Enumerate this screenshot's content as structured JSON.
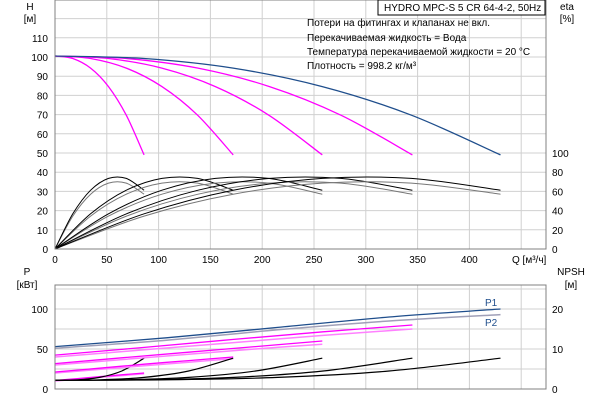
{
  "header": {
    "title": "HYDRO MPC-S 5 CR 64-4-2, 50Hz",
    "notes": [
      "Потери на фитингах и клапанах не вкл.",
      "Перекачиваемая жидкость = Вода",
      "Температура перекачиваемой жидкости = 20 °C",
      "Плотность = 998.2 кг/м³"
    ]
  },
  "colors": {
    "all_pumps": "#1f4e8c",
    "partial": "#ff00ff",
    "efficiency": "#000000",
    "npsh": "#000000",
    "p2": "#a0a0b8",
    "grid": "#d0d0d0"
  },
  "chart_data": [
    {
      "type": "line",
      "title": "",
      "xlabel": "Q [м³/ч]",
      "ylabel": "H\n[м]",
      "ylabel_right": "eta\n[%]",
      "xlim": [
        0,
        474
      ],
      "ylim": [
        0,
        130
      ],
      "ylim_right": [
        0,
        260
      ],
      "x_ticks": [
        "0",
        "50",
        "100",
        "150",
        "200",
        "250",
        "300",
        "350",
        "400"
      ],
      "y_ticks": [
        "0",
        "10",
        "20",
        "30",
        "40",
        "50",
        "60",
        "70",
        "80",
        "90",
        "100",
        "110"
      ],
      "y_ticks_right": [
        "0",
        "20",
        "40",
        "60",
        "80",
        "100"
      ],
      "grid": true,
      "series": [
        {
          "pumps": 1,
          "q": [
            0,
            17.2,
            34.4,
            51.6,
            68.8,
            86
          ],
          "H": [
            100.5,
            99.2,
            94.2,
            84.6,
            69.7,
            49.0
          ],
          "eta": [
            0,
            36.7,
            61.2,
            73.5,
            73.5,
            61.2
          ],
          "eta2": [
            0,
            34.3,
            57.1,
            68.6,
            68.6,
            57.1
          ]
        },
        {
          "pumps": 2,
          "q": [
            0,
            34.4,
            68.8,
            103.2,
            137.6,
            172
          ],
          "H": [
            100.5,
            99.2,
            94.2,
            84.6,
            69.7,
            49.0
          ],
          "eta": [
            0,
            36.7,
            61.2,
            73.5,
            73.5,
            61.2
          ],
          "eta2": [
            0,
            34.3,
            57.1,
            68.6,
            68.6,
            57.1
          ]
        },
        {
          "pumps": 3,
          "q": [
            0,
            51.6,
            103.2,
            154.8,
            206.4,
            258
          ],
          "H": [
            100.5,
            99.2,
            94.2,
            84.6,
            69.7,
            49.0
          ],
          "eta": [
            0,
            36.7,
            61.2,
            73.5,
            73.5,
            61.2
          ],
          "eta2": [
            0,
            34.3,
            57.1,
            68.6,
            68.6,
            57.1
          ]
        },
        {
          "pumps": 4,
          "q": [
            0,
            69,
            138,
            207,
            276,
            345
          ],
          "H": [
            100.5,
            99.2,
            94.2,
            84.6,
            69.7,
            49.0
          ],
          "eta": [
            0,
            36.7,
            61.2,
            73.5,
            73.5,
            61.2
          ],
          "eta2": [
            0,
            34.3,
            57.1,
            68.6,
            68.6,
            57.1
          ]
        },
        {
          "pumps": 5,
          "q": [
            0,
            86,
            172,
            258,
            344,
            430
          ],
          "H": [
            100.5,
            99.2,
            94.2,
            84.6,
            69.7,
            49.0
          ],
          "eta": [
            0,
            36.7,
            61.2,
            73.5,
            73.5,
            61.2
          ],
          "eta2": [
            0,
            34.3,
            57.1,
            68.6,
            68.6,
            57.1
          ]
        }
      ]
    },
    {
      "type": "line",
      "title": "",
      "ylabel": "P\n[кВт]",
      "ylabel_right": "NPSH\n[м]",
      "xlim": [
        0,
        474
      ],
      "ylim": [
        0,
        130
      ],
      "ylim_right": [
        0,
        26
      ],
      "y_ticks": [
        "0",
        "50",
        "100"
      ],
      "y_ticks_right": [
        "0",
        "10",
        "20"
      ],
      "grid": true,
      "legend": [
        "P1",
        "P2"
      ],
      "series": [
        {
          "pumps": 1,
          "q": [
            0,
            21.5,
            43,
            64.5,
            86
          ],
          "P1": [
            10.6,
            13,
            15.5,
            17.8,
            20
          ],
          "P2": [
            10,
            12.2,
            14.5,
            16.8,
            19
          ],
          "NPSH": [
            2.2,
            2.29,
            2.9,
            4.5,
            7.7
          ]
        },
        {
          "pumps": 2,
          "q": [
            0,
            43,
            86,
            129,
            172
          ],
          "P1": [
            21.2,
            26,
            31,
            35.5,
            40
          ],
          "P2": [
            20,
            24.5,
            29,
            33.5,
            38
          ],
          "NPSH": [
            2.2,
            2.29,
            2.9,
            4.5,
            7.7
          ]
        },
        {
          "pumps": 3,
          "q": [
            0,
            64.5,
            129,
            193.5,
            258
          ],
          "P1": [
            31.8,
            39,
            46,
            53,
            60
          ],
          "P2": [
            30,
            36.7,
            43.5,
            50,
            56
          ],
          "NPSH": [
            2.2,
            2.29,
            2.9,
            4.5,
            7.7
          ]
        },
        {
          "pumps": 4,
          "q": [
            0,
            86.25,
            172.5,
            258.75,
            345
          ],
          "P1": [
            42.4,
            52,
            62,
            71.5,
            80
          ],
          "P2": [
            40,
            49,
            58,
            67,
            75
          ],
          "NPSH": [
            2.2,
            2.29,
            2.9,
            4.5,
            7.7
          ]
        },
        {
          "pumps": 5,
          "q": [
            0,
            107.5,
            215,
            322.5,
            430
          ],
          "P1": [
            53,
            64,
            77,
            90,
            100
          ],
          "P2": [
            51,
            61,
            74,
            85,
            93
          ],
          "NPSH": [
            2.2,
            2.29,
            2.9,
            4.5,
            7.7
          ]
        }
      ]
    }
  ]
}
